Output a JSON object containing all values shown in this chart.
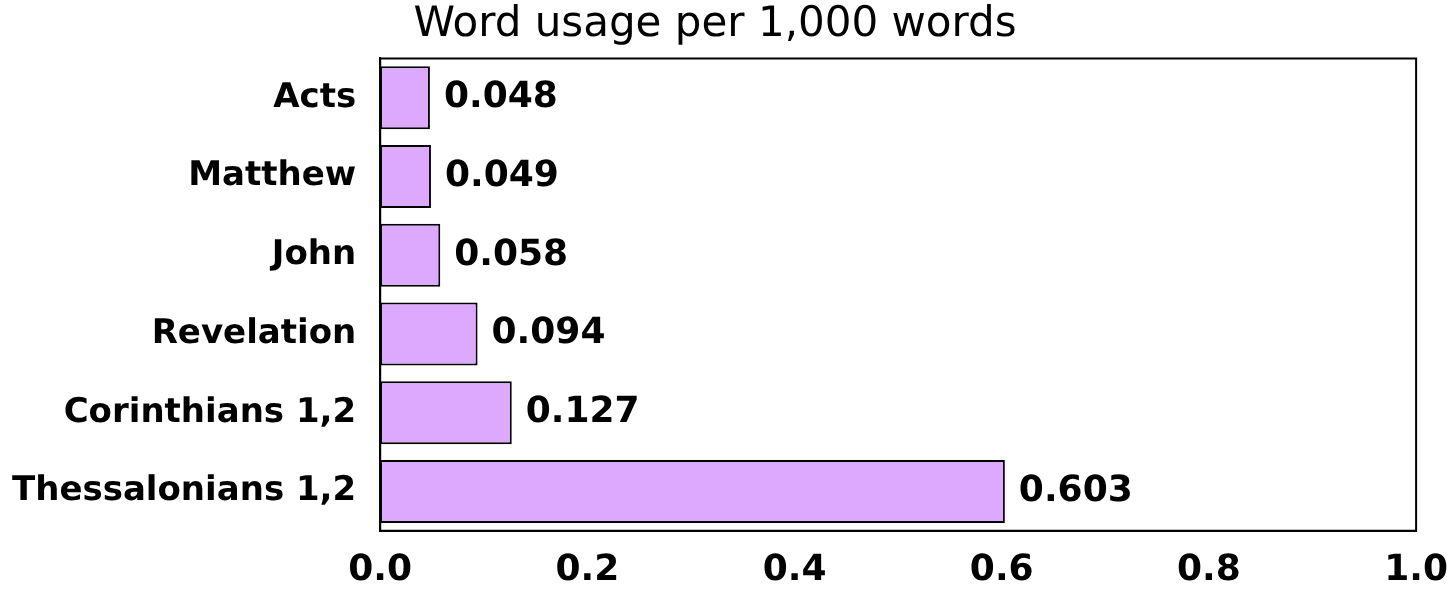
{
  "chart_data": {
    "type": "bar",
    "orientation": "horizontal",
    "title": "Word usage per 1,000 words",
    "categories": [
      "Acts",
      "Matthew",
      "John",
      "Revelation",
      "Corinthians 1,2",
      "Thessalonians 1,2"
    ],
    "values": [
      0.048,
      0.049,
      0.058,
      0.094,
      0.127,
      0.603
    ],
    "color": "#dda9ff",
    "xlim": [
      0,
      1
    ],
    "xticks": [
      {
        "value": 0,
        "label": "0.0"
      },
      {
        "value": 0.2,
        "label": "0.2"
      },
      {
        "value": 0.4,
        "label": "0.4"
      },
      {
        "value": 0.6,
        "label": "0.6"
      },
      {
        "value": 0.8,
        "label": "0.8"
      },
      {
        "value": 1,
        "label": "1.0"
      }
    ],
    "data_labels": true,
    "grid": false,
    "legend": false
  }
}
